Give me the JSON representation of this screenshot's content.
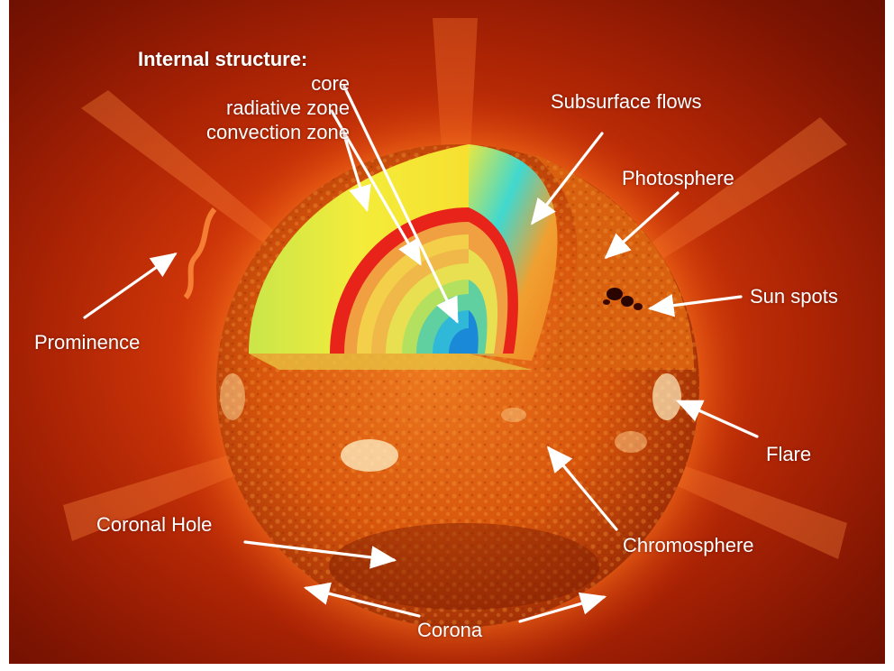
{
  "internal_structure": {
    "title": "Internal structure:",
    "items": [
      "core",
      "radiative zone",
      "convection zone"
    ]
  },
  "labels": {
    "subsurface_flows": "Subsurface flows",
    "photosphere": "Photosphere",
    "sun_spots": "Sun spots",
    "prominence": "Prominence",
    "flare": "Flare",
    "coronal_hole": "Coronal Hole",
    "chromosphere": "Chromosphere",
    "corona": "Corona"
  },
  "colors": {
    "corona_glow": "#c83008",
    "surface": "#d8560c",
    "convection_zone": "#f2e23a",
    "radiative_band": "#e02a10",
    "core": "#1aa0e0",
    "label_text": "#ffffff"
  }
}
